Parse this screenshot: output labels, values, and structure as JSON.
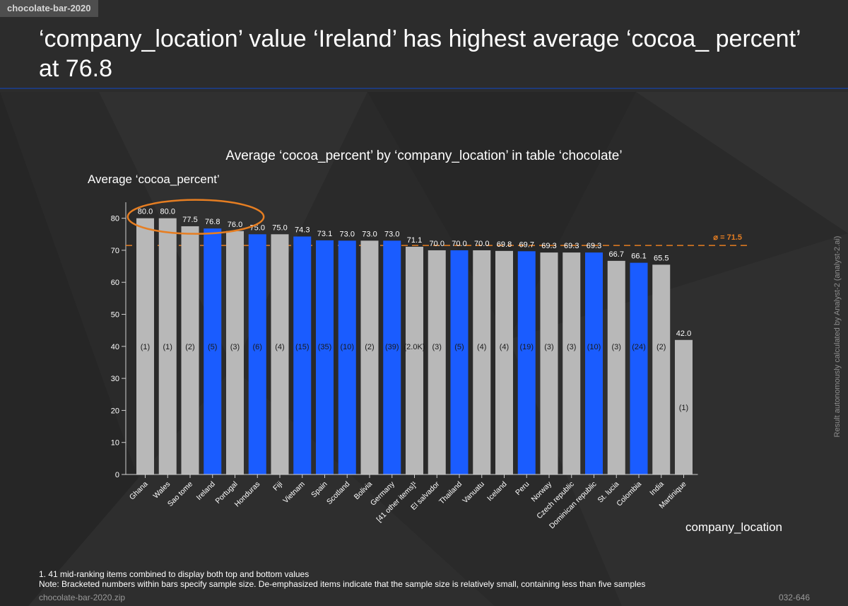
{
  "tag": "chocolate-bar-2020",
  "headline": "‘company_location’ value ‘Ireland’ has highest average ‘cocoa_ percent’ at 76.8",
  "colors": {
    "highlight_bar": "#1a5cff",
    "muted_bar": "#b8b8b8",
    "average_line": "#e67e22",
    "circle": "#e67e22",
    "rule": "#1e3a7a"
  },
  "chart_data": {
    "type": "bar",
    "title": "Average ‘cocoa_percent’ by ‘company_location’ in table ‘chocolate’",
    "ylabel": "Average ‘cocoa_percent’",
    "xlabel": "company_location",
    "ylim": [
      0,
      85
    ],
    "yticks": [
      0,
      10,
      20,
      30,
      40,
      50,
      60,
      70,
      80
    ],
    "average": 71.5,
    "average_label": "⌀ = 71.5",
    "categories": [
      "Ghana",
      "Wales",
      "Sao tome",
      "Ireland",
      "Portugal",
      "Honduras",
      "Fiji",
      "Vietnam",
      "Spain",
      "Scotland",
      "Bolivia",
      "Germany",
      "[41 other items]¹",
      "El salvador",
      "Thailand",
      "Vanuatu",
      "Iceland",
      "Peru",
      "Norway",
      "Czech republic",
      "Dominican republic",
      "St. lucia",
      "Colombia",
      "India",
      "Martinique"
    ],
    "values": [
      80.0,
      80.0,
      77.5,
      76.8,
      76.0,
      75.0,
      75.0,
      74.3,
      73.1,
      73.0,
      73.0,
      73.0,
      71.1,
      70.0,
      70.0,
      70.0,
      69.8,
      69.7,
      69.3,
      69.3,
      69.3,
      66.7,
      66.1,
      65.5,
      42.0
    ],
    "value_labels": [
      "80.0",
      "80.0",
      "77.5",
      "76.8",
      "76.0",
      "75.0",
      "75.0",
      "74.3",
      "73.1",
      "73.0",
      "73.0",
      "73.0",
      "71.1",
      "70.0",
      "70.0",
      "70.0",
      "69.8",
      "69.7",
      "69.3",
      "69.3",
      "69.3",
      "66.7",
      "66.1",
      "65.5",
      "42.0"
    ],
    "sample_labels": [
      "(1)",
      "(1)",
      "(2)",
      "(5)",
      "(3)",
      "(6)",
      "(4)",
      "(15)",
      "(35)",
      "(10)",
      "(2)",
      "(39)",
      "(2.0K)",
      "(3)",
      "(5)",
      "(4)",
      "(4)",
      "(19)",
      "(3)",
      "(3)",
      "(10)",
      "(3)",
      "(24)",
      "(2)",
      "(1)"
    ],
    "highlighted": [
      false,
      false,
      false,
      true,
      false,
      true,
      false,
      true,
      true,
      true,
      false,
      true,
      false,
      false,
      true,
      false,
      false,
      true,
      false,
      false,
      true,
      false,
      true,
      false,
      false
    ],
    "circled_indices": [
      1,
      3
    ]
  },
  "footer": {
    "note1": "1. 41 mid-ranking items combined to display both top and bottom values",
    "note2": "Note: Bracketed numbers within bars specify sample size.   De-emphasized items indicate that the sample size is relatively small, containing less than five samples",
    "file": "chocolate-bar-2020.zip",
    "code": "032-646",
    "credit": "Result autonomously calculated by Analyst-2 (analyst-2.ai)"
  }
}
